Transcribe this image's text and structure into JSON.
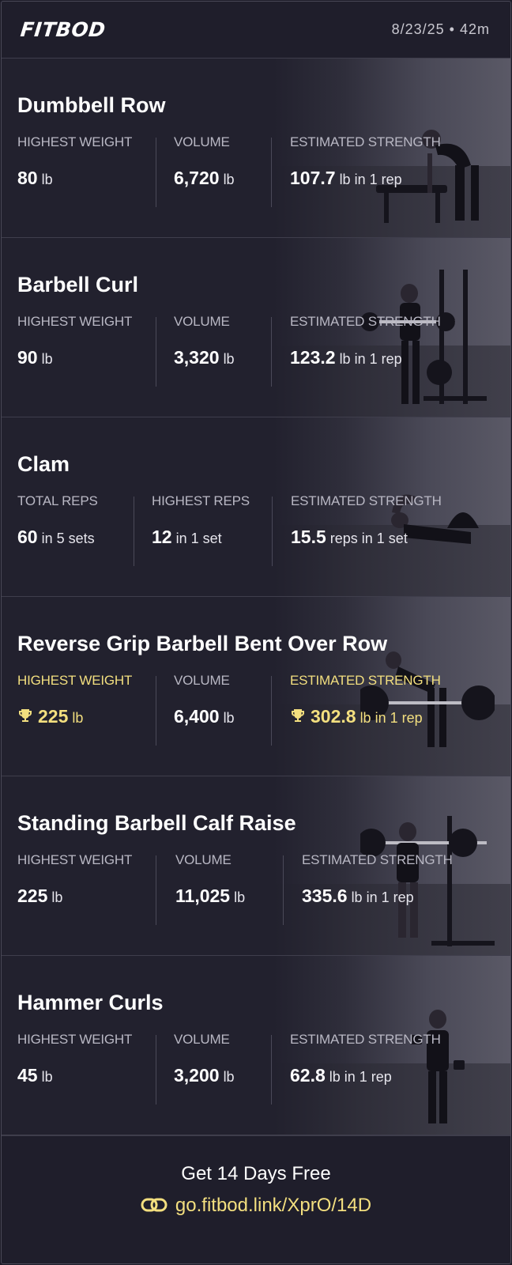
{
  "header": {
    "logo": "FITBOD",
    "session": "8/23/25 • 42m"
  },
  "exercises": [
    {
      "title": "Dumbbell Row",
      "stats": [
        {
          "label": "HIGHEST WEIGHT",
          "value": "80",
          "unit": "lb"
        },
        {
          "label": "VOLUME",
          "value": "6,720",
          "unit": "lb"
        },
        {
          "label": "ESTIMATED STRENGTH",
          "value": "107.7",
          "unit": "lb in 1 rep"
        }
      ]
    },
    {
      "title": "Barbell Curl",
      "stats": [
        {
          "label": "HIGHEST WEIGHT",
          "value": "90",
          "unit": "lb"
        },
        {
          "label": "VOLUME",
          "value": "3,320",
          "unit": "lb"
        },
        {
          "label": "ESTIMATED STRENGTH",
          "value": "123.2",
          "unit": "lb in 1 rep"
        }
      ]
    },
    {
      "title": "Clam",
      "stats": [
        {
          "label": "TOTAL REPS",
          "value": "60",
          "unit": "in 5 sets"
        },
        {
          "label": "HIGHEST REPS",
          "value": "12",
          "unit": "in 1 set"
        },
        {
          "label": "ESTIMATED STRENGTH",
          "value": "15.5",
          "unit": "reps in 1 set"
        }
      ]
    },
    {
      "title": "Reverse Grip Barbell Bent Over Row",
      "stats": [
        {
          "label": "HIGHEST WEIGHT",
          "value": "225",
          "unit": "lb",
          "record": true
        },
        {
          "label": "VOLUME",
          "value": "6,400",
          "unit": "lb"
        },
        {
          "label": "ESTIMATED STRENGTH",
          "value": "302.8",
          "unit": "lb in 1 rep",
          "record": true
        }
      ]
    },
    {
      "title": "Standing Barbell Calf Raise",
      "stats": [
        {
          "label": "HIGHEST WEIGHT",
          "value": "225",
          "unit": "lb"
        },
        {
          "label": "VOLUME",
          "value": "11,025",
          "unit": "lb"
        },
        {
          "label": "ESTIMATED STRENGTH",
          "value": "335.6",
          "unit": "lb in 1 rep"
        }
      ]
    },
    {
      "title": "Hammer Curls",
      "stats": [
        {
          "label": "HIGHEST WEIGHT",
          "value": "45",
          "unit": "lb"
        },
        {
          "label": "VOLUME",
          "value": "3,200",
          "unit": "lb"
        },
        {
          "label": "ESTIMATED STRENGTH",
          "value": "62.8",
          "unit": "lb in 1 rep"
        }
      ]
    }
  ],
  "footer": {
    "cta": "Get 14 Days Free",
    "link": "go.fitbod.link/XprO/14D"
  },
  "icons": {
    "trophy": "trophy-icon",
    "link": "link-icon"
  },
  "colors": {
    "background": "#1f1e2b",
    "record_gold": "#f3df7f",
    "label_gray": "#b9b8c4"
  }
}
